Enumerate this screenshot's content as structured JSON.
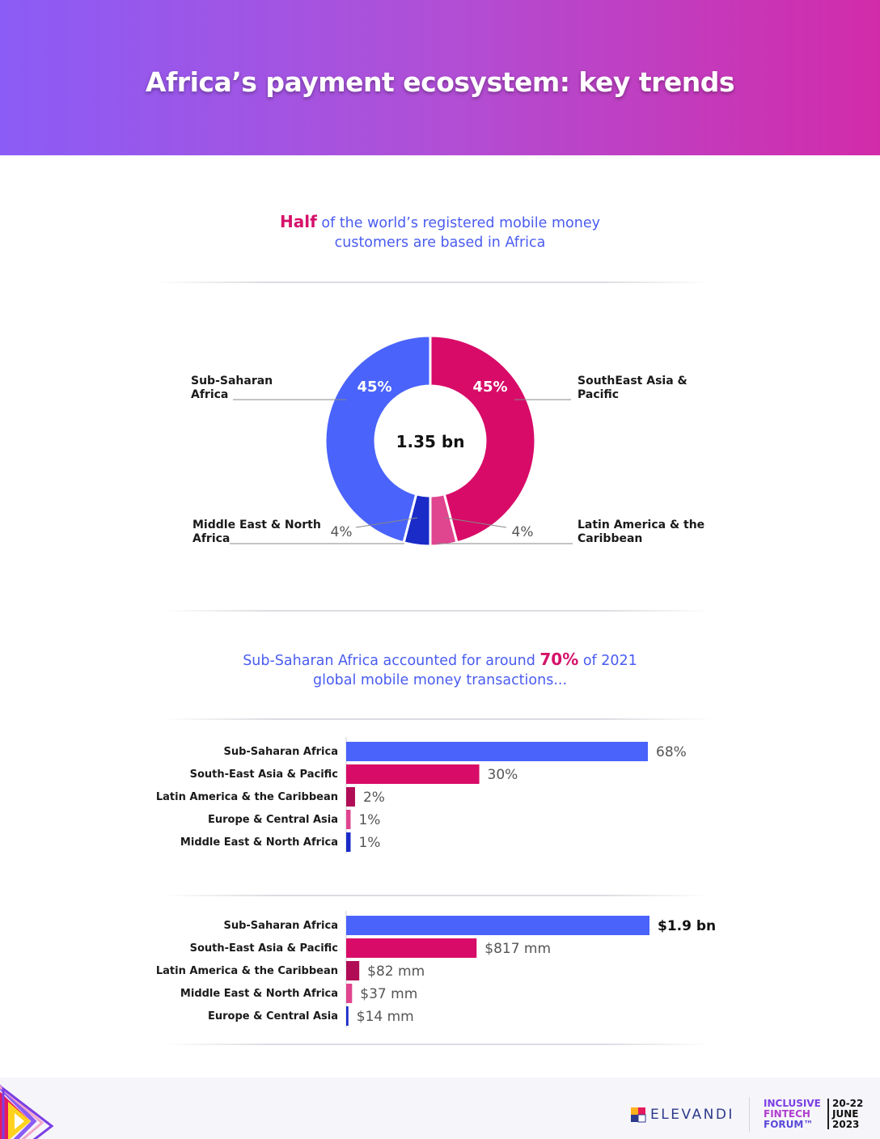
{
  "header": {
    "title": "Africa’s payment ecosystem: key trends"
  },
  "section1": {
    "highlight": "Half",
    "text_line1": " of the world’s registered mobile money",
    "text_line2": "customers are based in Africa"
  },
  "section2": {
    "text_before": "Sub-Saharan Africa accounted for around ",
    "highlight": "70%",
    "text_after": " of 2021",
    "text_line2": "global mobile money transactions..."
  },
  "colors": {
    "blue": "#4a63fb",
    "magenta": "#d80b68",
    "maroon": "#b10d57",
    "pink": "#e0458f",
    "navy": "#1a2bc8"
  },
  "chart_data": [
    {
      "type": "pie",
      "center_label": "1.35 bn",
      "slices": [
        {
          "name_line1": "Sub-Saharan",
          "name_line2": "Africa",
          "value": 45,
          "label": "45%",
          "color": "#4a63fb"
        },
        {
          "name_line1": "SouthEast Asia &",
          "name_line2": "Pacific",
          "value": 45,
          "label": "45%",
          "color": "#d80b68"
        },
        {
          "name_line1": "Latin America & the",
          "name_line2": "Caribbean",
          "value": 4,
          "label": "4%",
          "color": "#e0458f"
        },
        {
          "name_line1": "Middle East & North",
          "name_line2": "Africa",
          "value": 4,
          "label": "4%",
          "color": "#1a2bc8"
        }
      ]
    },
    {
      "type": "bar",
      "orientation": "horizontal",
      "categories": [
        "Sub-Saharan Africa",
        "South-East Asia & Pacific",
        "Latin America & the Caribbean",
        "Europe & Central Asia",
        "Middle East & North Africa"
      ],
      "values": [
        68,
        30,
        2,
        1,
        1
      ],
      "labels": [
        "68%",
        "30%",
        "2%",
        "1%",
        "1%"
      ],
      "colors": [
        "#4a63fb",
        "#d80b68",
        "#b10d57",
        "#e0458f",
        "#1a2bc8"
      ]
    },
    {
      "type": "bar",
      "orientation": "horizontal",
      "categories": [
        "Sub-Saharan Africa",
        "South-East Asia & Pacific",
        "Latin America & the Caribbean",
        "Middle East & North Africa",
        "Europe & Central Asia"
      ],
      "values": [
        1900,
        817,
        82,
        37,
        14
      ],
      "labels": [
        "$1.9 bn",
        "$817 mm",
        "$82 mm",
        "$37 mm",
        "$14 mm"
      ],
      "colors": [
        "#4a63fb",
        "#d80b68",
        "#b10d57",
        "#e0458f",
        "#1a2bc8"
      ]
    }
  ],
  "footer": {
    "elevandi": "ELEVANDI",
    "forum_line1": "INCLUSIVE",
    "forum_line2": "FINTECH",
    "forum_line3": "FORUM™",
    "date_line1": "20-22",
    "date_line2": "JUNE",
    "date_line3": "2023"
  }
}
